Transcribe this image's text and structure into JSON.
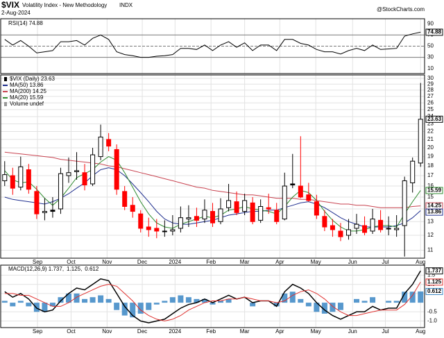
{
  "header": {
    "symbol": "$VIX",
    "name": "Volatility Index - New Methodology",
    "exchange": "INDX",
    "date": "2-Aug-2024",
    "source": "@StockCharts.com"
  },
  "chart_data": [
    {
      "type": "line",
      "xlim": [
        -0.5,
        52.5
      ],
      "ylim": [
        1,
        99
      ],
      "yticks": [
        10,
        30,
        50,
        70,
        90
      ],
      "reference_lines": [
        {
          "value": 70,
          "style": "solid"
        },
        {
          "value": 50,
          "style": "dashed"
        },
        {
          "value": 30,
          "style": "solid"
        }
      ],
      "series": [
        {
          "name": "RSI(14) 74.88",
          "color": "#000000",
          "values": [
            62,
            52,
            60,
            50,
            38,
            40,
            42,
            58,
            58,
            60,
            52,
            64,
            70,
            62,
            40,
            35,
            33,
            30,
            30,
            32,
            33,
            35,
            46,
            46,
            44,
            52,
            42,
            52,
            58,
            48,
            56,
            42,
            52,
            52,
            42,
            62,
            62,
            55,
            52,
            44,
            40,
            40,
            36,
            42,
            46,
            42,
            52,
            44,
            45,
            46,
            68,
            72,
            74.88
          ]
        }
      ]
    },
    {
      "type": "candlestick",
      "log_scale": true,
      "grid": true,
      "xlim": [
        -0.5,
        52.5
      ],
      "ylim": [
        10.5,
        30.6
      ],
      "yticks": [
        11,
        12,
        13,
        14,
        15,
        16,
        17,
        18,
        19,
        20,
        21,
        22,
        23,
        24,
        25,
        26,
        27,
        28,
        29,
        30
      ],
      "xticks": [
        {
          "value": 4.1,
          "label": "Sep"
        },
        {
          "value": 8.3,
          "label": "Oct"
        },
        {
          "value": 12.8,
          "label": "Nov"
        },
        {
          "value": 17.2,
          "label": "Dec"
        },
        {
          "value": 21.3,
          "label": "2024"
        },
        {
          "value": 25.8,
          "label": "Feb"
        },
        {
          "value": 30.0,
          "label": "Mar"
        },
        {
          "value": 34.4,
          "label": "Apr"
        },
        {
          "value": 38.9,
          "label": "May"
        },
        {
          "value": 43.5,
          "label": "Jun"
        },
        {
          "value": 47.6,
          "label": "Jul"
        },
        {
          "value": 52.0,
          "label": "Aug"
        }
      ],
      "candle_name": "$VIX (Daily) 23.63",
      "volume_label": "Volume undef",
      "up_color": "#000000",
      "down_color": "#ff0000",
      "open": [
        16.5,
        17.0,
        15.9,
        17.6,
        15.5,
        13.7,
        13.9,
        14.0,
        17.0,
        17.4,
        17.3,
        16.2,
        19.0,
        21.0,
        19.8,
        15.5,
        14.3,
        13.6,
        12.6,
        12.5,
        12.3,
        12.3,
        12.5,
        13.2,
        13.4,
        13.2,
        13.8,
        13.0,
        14.1,
        14.6,
        13.8,
        14.5,
        13.1,
        14.1,
        13.9,
        13.2,
        16.2,
        16.0,
        15.2,
        14.6,
        13.4,
        12.7,
        12.3,
        12.0,
        12.5,
        12.7,
        12.3,
        13.1,
        12.5,
        12.4,
        12.7,
        16.3,
        18.3
      ],
      "high": [
        18.5,
        17.8,
        19.0,
        18.2,
        16.0,
        14.9,
        15.0,
        17.8,
        18.9,
        19.5,
        18.2,
        20.0,
        22.9,
        21.8,
        20.4,
        16.0,
        15.0,
        13.9,
        13.3,
        13.2,
        13.1,
        13.5,
        14.2,
        14.3,
        14.1,
        14.8,
        14.5,
        14.9,
        16.2,
        15.5,
        15.3,
        15.0,
        14.8,
        15.3,
        14.5,
        17.3,
        19.3,
        21.4,
        16.3,
        15.2,
        13.9,
        13.2,
        12.9,
        13.2,
        13.6,
        13.4,
        14.0,
        13.9,
        13.4,
        13.5,
        16.9,
        18.9,
        29.2
      ],
      "low": [
        16.0,
        15.2,
        15.6,
        15.3,
        13.2,
        13.1,
        13.3,
        13.6,
        16.3,
        16.6,
        15.6,
        16.0,
        18.6,
        19.6,
        15.2,
        13.9,
        13.3,
        12.2,
        11.9,
        11.8,
        11.9,
        12.0,
        12.2,
        12.6,
        12.6,
        12.9,
        12.6,
        12.8,
        13.8,
        13.5,
        13.5,
        12.8,
        12.9,
        13.6,
        12.8,
        13.1,
        15.8,
        14.9,
        14.6,
        13.2,
        12.3,
        11.9,
        11.6,
        11.7,
        12.1,
        12.0,
        12.1,
        12.2,
        12.0,
        11.9,
        10.6,
        15.4,
        17.9
      ],
      "close": [
        17.1,
        15.8,
        17.9,
        15.7,
        13.6,
        13.8,
        13.8,
        17.2,
        17.3,
        17.5,
        16.1,
        19.2,
        21.3,
        20.2,
        15.7,
        14.2,
        13.8,
        12.5,
        12.4,
        12.3,
        12.3,
        12.4,
        13.3,
        13.3,
        13.1,
        13.9,
        12.9,
        14.0,
        14.7,
        13.7,
        14.7,
        13.0,
        14.2,
        14.0,
        13.0,
        16.0,
        16.1,
        15.0,
        14.7,
        13.5,
        12.6,
        12.4,
        11.9,
        12.4,
        12.8,
        12.2,
        13.2,
        12.4,
        12.5,
        12.5,
        16.5,
        18.5,
        23.63
      ],
      "series": [
        {
          "name": "MA(50) 13.86",
          "color": "#1f2f8f",
          "values": [
            15.0,
            14.8,
            14.7,
            14.6,
            14.5,
            14.4,
            14.6,
            14.9,
            15.3,
            15.8,
            16.3,
            17.0,
            17.6,
            17.8,
            17.6,
            17.0,
            16.2,
            15.4,
            14.6,
            13.8,
            13.2,
            12.9,
            12.8,
            12.8,
            12.9,
            13.0,
            13.1,
            13.3,
            13.5,
            13.6,
            13.7,
            13.8,
            13.8,
            13.9,
            13.9,
            14.1,
            14.3,
            14.5,
            14.6,
            14.4,
            14.1,
            13.7,
            13.3,
            13.0,
            12.8,
            12.6,
            12.6,
            12.6,
            12.6,
            12.7,
            12.9,
            13.3,
            13.86
          ]
        },
        {
          "name": "MA(200) 14.25",
          "color": "#c8424f",
          "values": [
            19.5,
            19.4,
            19.3,
            19.2,
            19.1,
            19.0,
            18.9,
            18.7,
            18.6,
            18.5,
            18.4,
            18.3,
            18.2,
            18.0,
            17.9,
            17.7,
            17.5,
            17.3,
            17.1,
            16.9,
            16.7,
            16.5,
            16.3,
            16.1,
            15.9,
            15.8,
            15.6,
            15.5,
            15.4,
            15.3,
            15.2,
            15.2,
            15.1,
            15.0,
            14.9,
            14.9,
            14.9,
            14.8,
            14.8,
            14.7,
            14.6,
            14.5,
            14.4,
            14.4,
            14.3,
            14.3,
            14.2,
            14.1,
            14.1,
            14.1,
            14.1,
            14.2,
            14.25
          ]
        },
        {
          "name": "MA(20) 15.59",
          "color": "#2e8b2e",
          "values": [
            17.5,
            16.6,
            16.3,
            16.4,
            15.7,
            14.9,
            14.3,
            14.9,
            15.8,
            16.8,
            17.2,
            17.6,
            18.4,
            19.0,
            18.6,
            17.3,
            15.9,
            14.6,
            13.6,
            12.9,
            12.6,
            12.5,
            12.8,
            13.0,
            13.2,
            13.4,
            13.3,
            13.5,
            13.9,
            14.0,
            14.2,
            14.0,
            13.9,
            13.8,
            13.6,
            14.2,
            15.0,
            15.6,
            15.4,
            14.7,
            13.8,
            13.1,
            12.6,
            12.3,
            12.3,
            12.4,
            12.6,
            12.7,
            12.7,
            12.6,
            13.6,
            14.6,
            15.59
          ]
        }
      ]
    },
    {
      "type": "macd",
      "xlim": [
        -0.5,
        52.5
      ],
      "ylim": [
        -1.36,
        2.05
      ],
      "yticks": [
        1.5,
        {
          "value": 1,
          "label": "1.0"
        },
        0.5,
        -0.5,
        {
          "value": -1,
          "label": "-1.0"
        }
      ],
      "xticks": [
        {
          "value": 4.1,
          "label": "Sep"
        },
        {
          "value": 8.3,
          "label": "Oct"
        },
        {
          "value": 12.8,
          "label": "Nov"
        },
        {
          "value": 17.2,
          "label": "Dec"
        },
        {
          "value": 21.3,
          "label": "2024"
        },
        {
          "value": 25.8,
          "label": "Feb"
        },
        {
          "value": 30.0,
          "label": "Mar"
        },
        {
          "value": 34.4,
          "label": "Apr"
        },
        {
          "value": 38.9,
          "label": "May"
        },
        {
          "value": 43.5,
          "label": "Jun"
        },
        {
          "value": 47.6,
          "label": "Jul"
        },
        {
          "value": 52.0,
          "label": "Aug"
        }
      ],
      "series": [
        {
          "name": "MACD(12,26,9) 1.737,",
          "color": "#000000",
          "values": [
            0.6,
            0.3,
            0.5,
            0.2,
            -0.3,
            -0.5,
            -0.4,
            0.1,
            0.5,
            0.8,
            0.7,
            1.0,
            1.3,
            1.2,
            0.5,
            -0.2,
            -0.7,
            -1.0,
            -1.1,
            -1.0,
            -0.9,
            -0.6,
            -0.3,
            -0.1,
            0.0,
            0.2,
            0.0,
            0.2,
            0.4,
            0.2,
            0.3,
            0.0,
            0.1,
            0.1,
            -0.2,
            0.6,
            1.0,
            0.8,
            0.5,
            0.0,
            -0.4,
            -0.7,
            -0.9,
            -0.7,
            -0.5,
            -0.5,
            -0.2,
            -0.4,
            -0.3,
            -0.3,
            0.5,
            1.0,
            1.737
          ]
        },
        {
          "name": "1.125,",
          "color": "#e0312f",
          "values": [
            0.5,
            0.5,
            0.4,
            0.4,
            0.2,
            0.0,
            -0.2,
            -0.2,
            0.0,
            0.3,
            0.5,
            0.7,
            0.9,
            1.0,
            0.9,
            0.5,
            0.1,
            -0.4,
            -0.7,
            -0.9,
            -1.0,
            -0.9,
            -0.7,
            -0.4,
            -0.2,
            0.0,
            0.1,
            0.1,
            0.2,
            0.2,
            0.3,
            0.2,
            0.1,
            0.1,
            0.0,
            0.1,
            0.4,
            0.6,
            0.7,
            0.5,
            0.2,
            -0.2,
            -0.5,
            -0.7,
            -0.7,
            -0.6,
            -0.5,
            -0.4,
            -0.4,
            -0.4,
            -0.1,
            0.4,
            1.125
          ]
        },
        {
          "name": "0.612",
          "color": "#3a86c4",
          "style": "bar",
          "values": [
            0.1,
            -0.2,
            0.1,
            -0.2,
            -0.5,
            -0.5,
            -0.2,
            0.3,
            0.5,
            0.5,
            0.2,
            0.3,
            0.4,
            0.2,
            -0.4,
            -0.7,
            -0.8,
            -0.6,
            -0.4,
            -0.1,
            0.1,
            0.3,
            0.4,
            0.3,
            0.2,
            0.2,
            -0.1,
            0.1,
            0.2,
            0.0,
            0.0,
            -0.2,
            0.0,
            0.0,
            -0.2,
            0.5,
            0.6,
            0.2,
            -0.2,
            -0.5,
            -0.6,
            -0.5,
            -0.4,
            0.0,
            0.2,
            0.1,
            0.3,
            0.0,
            0.1,
            0.1,
            0.6,
            0.6,
            0.612
          ]
        }
      ]
    }
  ]
}
